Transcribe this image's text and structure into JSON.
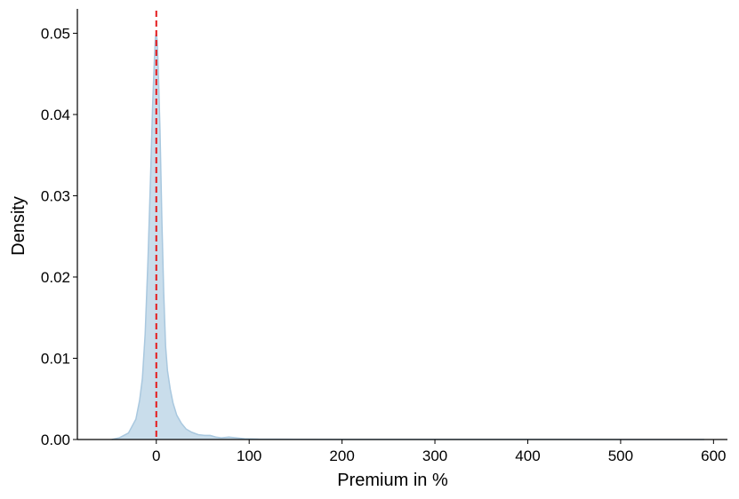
{
  "chart_data": {
    "type": "area",
    "title": "",
    "xlabel": "Premium in %",
    "ylabel": "Density",
    "xlim": [
      -85,
      615
    ],
    "ylim": [
      0,
      0.053
    ],
    "x_ticks": [
      0,
      100,
      200,
      300,
      400,
      500,
      600
    ],
    "x_tick_labels": [
      "0",
      "100",
      "200",
      "300",
      "400",
      "500",
      "600"
    ],
    "y_ticks": [
      0,
      0.01,
      0.02,
      0.03,
      0.04,
      0.05
    ],
    "y_tick_labels": [
      "0.00",
      "0.01",
      "0.02",
      "0.03",
      "0.04",
      "0.05"
    ],
    "grid": false,
    "reference_line": {
      "x": 0,
      "style": "dashed",
      "color": "#e41a1c"
    },
    "series": [
      {
        "fill_color": "#c6dbea",
        "line_color": "#a9c8df",
        "points": [
          [
            -48,
            0.0
          ],
          [
            -40,
            0.0002
          ],
          [
            -30,
            0.0008
          ],
          [
            -22,
            0.0025
          ],
          [
            -18,
            0.0048
          ],
          [
            -15,
            0.0075
          ],
          [
            -12,
            0.013
          ],
          [
            -9,
            0.022
          ],
          [
            -6,
            0.033
          ],
          [
            -4,
            0.041
          ],
          [
            -2,
            0.047
          ],
          [
            -1,
            0.0495
          ],
          [
            0,
            0.05
          ],
          [
            1,
            0.049
          ],
          [
            2,
            0.046
          ],
          [
            4,
            0.038
          ],
          [
            6,
            0.027
          ],
          [
            8,
            0.018
          ],
          [
            10,
            0.0115
          ],
          [
            12,
            0.0085
          ],
          [
            15,
            0.0062
          ],
          [
            18,
            0.0045
          ],
          [
            22,
            0.003
          ],
          [
            27,
            0.002
          ],
          [
            32,
            0.0013
          ],
          [
            38,
            0.0009
          ],
          [
            45,
            0.0006
          ],
          [
            52,
            0.0005
          ],
          [
            58,
            0.0005
          ],
          [
            64,
            0.0003
          ],
          [
            70,
            0.0002
          ],
          [
            78,
            0.0003
          ],
          [
            86,
            0.0002
          ],
          [
            95,
            0.0001
          ],
          [
            110,
            5e-05
          ],
          [
            150,
            3e-05
          ],
          [
            200,
            2e-05
          ],
          [
            300,
            1e-05
          ],
          [
            400,
            1e-05
          ],
          [
            500,
            5e-06
          ],
          [
            590,
            0.0
          ]
        ]
      }
    ]
  }
}
